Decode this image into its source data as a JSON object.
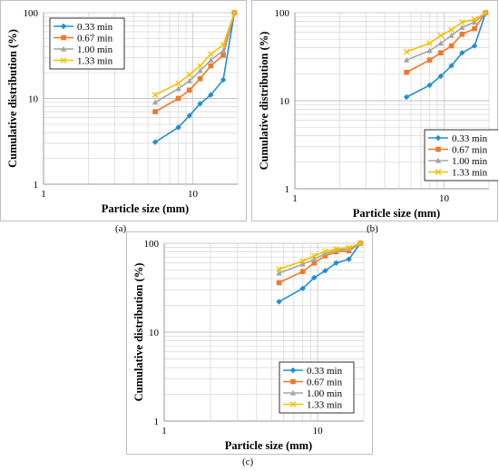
{
  "chart_data": [
    {
      "type": "line",
      "panel_label": "(a)",
      "xlabel": "Particle size (mm)",
      "ylabel": "Cumulative distribution (%)",
      "x_scale": "log",
      "y_scale": "log",
      "xlim": [
        1,
        20
      ],
      "ylim": [
        1,
        100
      ],
      "x_ticks": [
        "1",
        "10"
      ],
      "y_ticks": [
        "1",
        "10",
        "100"
      ],
      "grid": true,
      "legend_position": "top-left",
      "x": [
        5.6,
        8,
        9.5,
        11.2,
        13.2,
        16,
        19
      ],
      "series": [
        {
          "name": "0.33 min",
          "color": "#1f8fd3",
          "marker": "diamond",
          "values": [
            3.1,
            4.6,
            6.3,
            8.7,
            11,
            16.5,
            100
          ]
        },
        {
          "name": "0.67 min",
          "color": "#f07828",
          "marker": "square",
          "values": [
            7,
            10,
            12.5,
            17,
            24,
            32,
            100
          ]
        },
        {
          "name": "1.00 min",
          "color": "#a6a6a6",
          "marker": "triangle",
          "values": [
            9,
            13,
            16,
            21,
            28,
            36,
            100
          ]
        },
        {
          "name": "1.33 min",
          "color": "#f5c000",
          "marker": "x",
          "values": [
            11,
            15,
            19,
            24,
            33,
            42,
            100
          ]
        }
      ]
    },
    {
      "type": "line",
      "panel_label": "(b)",
      "xlabel": "Particle size (mm)",
      "ylabel": "Cumulative distribution (%)",
      "x_scale": "log",
      "y_scale": "log",
      "xlim": [
        1,
        20
      ],
      "ylim": [
        1,
        100
      ],
      "x_ticks": [
        "1",
        "10"
      ],
      "y_ticks": [
        "1",
        "10",
        "100"
      ],
      "grid": true,
      "legend_position": "bottom-right",
      "x": [
        5.6,
        8,
        9.5,
        11.2,
        13.2,
        16,
        19
      ],
      "series": [
        {
          "name": "0.33 min",
          "color": "#1f8fd3",
          "marker": "diamond",
          "values": [
            11,
            15,
            19,
            25,
            35,
            42,
            100
          ]
        },
        {
          "name": "0.67 min",
          "color": "#f07828",
          "marker": "square",
          "values": [
            21,
            29,
            35,
            42,
            57,
            66,
            100
          ]
        },
        {
          "name": "1.00 min",
          "color": "#a6a6a6",
          "marker": "triangle",
          "values": [
            29,
            37,
            45,
            55,
            68,
            78,
            100
          ]
        },
        {
          "name": "1.33 min",
          "color": "#f5c000",
          "marker": "x",
          "values": [
            36,
            45,
            55,
            64,
            78,
            84,
            100
          ]
        }
      ]
    },
    {
      "type": "line",
      "panel_label": "(c)",
      "xlabel": "Particle size (mm)",
      "ylabel": "Cumulative distribution (%)",
      "x_scale": "log",
      "y_scale": "log",
      "xlim": [
        1,
        20
      ],
      "ylim": [
        1,
        100
      ],
      "x_ticks": [
        "1",
        "10"
      ],
      "y_ticks": [
        "1",
        "10",
        "100"
      ],
      "grid": true,
      "legend_position": "bottom-right",
      "x": [
        5.6,
        8,
        9.5,
        11.2,
        13.2,
        16,
        19
      ],
      "series": [
        {
          "name": "0.33 min",
          "color": "#1f8fd3",
          "marker": "diamond",
          "values": [
            22,
            31,
            41,
            49,
            60,
            66,
            100
          ]
        },
        {
          "name": "0.67 min",
          "color": "#f07828",
          "marker": "square",
          "values": [
            36,
            48,
            60,
            72,
            80,
            82,
            100
          ]
        },
        {
          "name": "1.00 min",
          "color": "#a6a6a6",
          "marker": "triangle",
          "values": [
            46,
            58,
            66,
            76,
            83,
            86,
            100
          ]
        },
        {
          "name": "1.33 min",
          "color": "#f5c000",
          "marker": "x",
          "values": [
            51,
            63,
            72,
            81,
            86,
            89,
            100
          ]
        }
      ]
    }
  ]
}
